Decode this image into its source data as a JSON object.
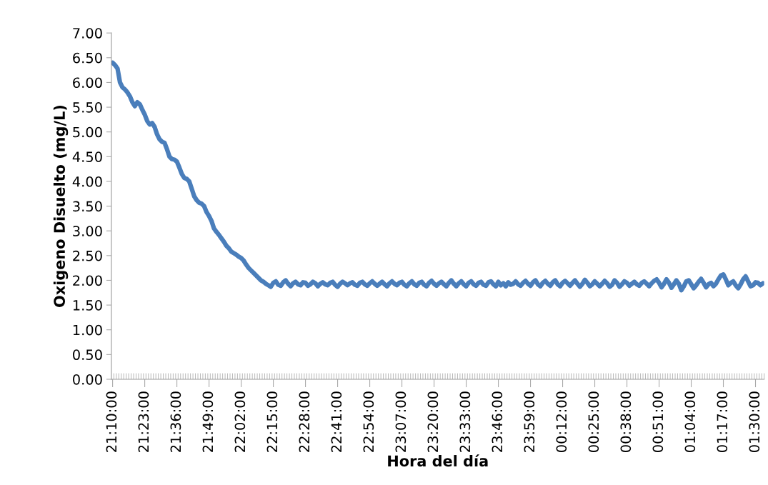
{
  "chart_data": {
    "type": "line",
    "xlabel": "Hora del día",
    "ylabel": "Oxigeno Disuelto (mg/L)",
    "ylim": [
      0,
      7
    ],
    "yticks": [
      {
        "value": 0,
        "label": "0.00"
      },
      {
        "value": 0.5,
        "label": "0.50"
      },
      {
        "value": 1,
        "label": "1.00"
      },
      {
        "value": 1.5,
        "label": "1.50"
      },
      {
        "value": 2,
        "label": "2.00"
      },
      {
        "value": 2.5,
        "label": "2.50"
      },
      {
        "value": 3,
        "label": "3.00"
      },
      {
        "value": 3.5,
        "label": "3.50"
      },
      {
        "value": 4,
        "label": "4.00"
      },
      {
        "value": 4.5,
        "label": "4.50"
      },
      {
        "value": 5,
        "label": "5.00"
      },
      {
        "value": 5.5,
        "label": "5.50"
      },
      {
        "value": 6,
        "label": "6.00"
      },
      {
        "value": 6.5,
        "label": "6.50"
      },
      {
        "value": 7,
        "label": "7.00"
      }
    ],
    "grid": false,
    "legend": false,
    "marker": "none",
    "line_style": "solid",
    "categories": [
      "21:10:00",
      null,
      null,
      null,
      null,
      null,
      null,
      null,
      null,
      null,
      null,
      null,
      null,
      "21:23:00",
      null,
      null,
      null,
      null,
      null,
      null,
      null,
      null,
      null,
      null,
      null,
      null,
      "21:36:00",
      null,
      null,
      null,
      null,
      null,
      null,
      null,
      null,
      null,
      null,
      null,
      null,
      "21:49:00",
      null,
      null,
      null,
      null,
      null,
      null,
      null,
      null,
      null,
      null,
      null,
      null,
      "22:02:00",
      null,
      null,
      null,
      null,
      null,
      null,
      null,
      null,
      null,
      null,
      null,
      null,
      "22:15:00",
      null,
      null,
      null,
      null,
      null,
      null,
      null,
      null,
      null,
      null,
      null,
      null,
      "22:28:00",
      null,
      null,
      null,
      null,
      null,
      null,
      null,
      null,
      null,
      null,
      null,
      null,
      "22:41:00",
      null,
      null,
      null,
      null,
      null,
      null,
      null,
      null,
      null,
      null,
      null,
      null,
      "22:54:00",
      null,
      null,
      null,
      null,
      null,
      null,
      null,
      null,
      null,
      null,
      null,
      null,
      "23:07:00",
      null,
      null,
      null,
      null,
      null,
      null,
      null,
      null,
      null,
      null,
      null,
      null,
      "23:20:00",
      null,
      null,
      null,
      null,
      null,
      null,
      null,
      null,
      null,
      null,
      null,
      null,
      "23:33:00",
      null,
      null,
      null,
      null,
      null,
      null,
      null,
      null,
      null,
      null,
      null,
      null,
      "23:46:00",
      null,
      null,
      null,
      null,
      null,
      null,
      null,
      null,
      null,
      null,
      null,
      null,
      "23:59:00",
      null,
      null,
      null,
      null,
      null,
      null,
      null,
      null,
      null,
      null,
      null,
      null,
      "00:12:00",
      null,
      null,
      null,
      null,
      null,
      null,
      null,
      null,
      null,
      null,
      null,
      null,
      "00:25:00",
      null,
      null,
      null,
      null,
      null,
      null,
      null,
      null,
      null,
      null,
      null,
      null,
      "00:38:00",
      null,
      null,
      null,
      null,
      null,
      null,
      null,
      null,
      null,
      null,
      null,
      null,
      "00:51:00",
      null,
      null,
      null,
      null,
      null,
      null,
      null,
      null,
      null,
      null,
      null,
      null,
      "01:04:00",
      null,
      null,
      null,
      null,
      null,
      null,
      null,
      null,
      null,
      null,
      null,
      null,
      "01:17:00",
      null,
      null,
      null,
      null,
      null,
      null,
      null,
      null,
      null,
      null,
      null,
      null,
      "01:30:00",
      null,
      null,
      null
    ],
    "series": [
      {
        "color": "#4a7ebb",
        "values": [
          6.4,
          6.35,
          6.28,
          6.0,
          5.9,
          5.86,
          5.8,
          5.72,
          5.6,
          5.52,
          5.6,
          5.56,
          5.45,
          5.35,
          5.22,
          5.15,
          5.18,
          5.1,
          4.95,
          4.85,
          4.8,
          4.78,
          4.65,
          4.5,
          4.45,
          4.44,
          4.4,
          4.28,
          4.15,
          4.07,
          4.05,
          4.0,
          3.85,
          3.7,
          3.62,
          3.57,
          3.55,
          3.5,
          3.38,
          3.3,
          3.2,
          3.05,
          2.98,
          2.92,
          2.85,
          2.78,
          2.7,
          2.65,
          2.58,
          2.55,
          2.52,
          2.48,
          2.45,
          2.4,
          2.32,
          2.25,
          2.2,
          2.15,
          2.1,
          2.05,
          2.0,
          1.97,
          1.93,
          1.9,
          1.87,
          1.95,
          1.98,
          1.91,
          1.89,
          1.96,
          2.0,
          1.93,
          1.88,
          1.94,
          1.97,
          1.92,
          1.9,
          1.96,
          1.95,
          1.89,
          1.92,
          1.97,
          1.94,
          1.88,
          1.93,
          1.96,
          1.92,
          1.9,
          1.95,
          1.97,
          1.91,
          1.87,
          1.93,
          1.97,
          1.94,
          1.9,
          1.94,
          1.96,
          1.91,
          1.89,
          1.95,
          1.97,
          1.92,
          1.89,
          1.94,
          1.98,
          1.93,
          1.89,
          1.93,
          1.97,
          1.92,
          1.88,
          1.94,
          1.98,
          1.93,
          1.9,
          1.95,
          1.97,
          1.91,
          1.88,
          1.94,
          1.98,
          1.92,
          1.89,
          1.95,
          1.97,
          1.91,
          1.88,
          1.95,
          1.99,
          1.93,
          1.89,
          1.94,
          1.97,
          1.92,
          1.88,
          1.95,
          2.0,
          1.93,
          1.88,
          1.94,
          1.98,
          1.92,
          1.88,
          1.95,
          1.98,
          1.92,
          1.89,
          1.95,
          1.97,
          1.91,
          1.89,
          1.96,
          1.98,
          1.92,
          1.88,
          1.97,
          1.9,
          1.94,
          1.88,
          1.96,
          1.91,
          1.93,
          1.98,
          1.92,
          1.89,
          1.95,
          1.99,
          1.93,
          1.89,
          1.96,
          2.0,
          1.92,
          1.88,
          1.95,
          1.99,
          1.93,
          1.89,
          1.96,
          2.0,
          1.92,
          1.88,
          1.95,
          1.99,
          1.94,
          1.89,
          1.95,
          2.0,
          1.93,
          1.87,
          1.93,
          2.01,
          1.95,
          1.88,
          1.92,
          1.98,
          1.93,
          1.88,
          1.93,
          1.99,
          1.94,
          1.87,
          1.91,
          2.0,
          1.95,
          1.87,
          1.92,
          1.98,
          1.95,
          1.89,
          1.93,
          1.97,
          1.92,
          1.89,
          1.95,
          1.98,
          1.93,
          1.88,
          1.94,
          1.99,
          2.02,
          1.95,
          1.86,
          1.93,
          2.02,
          1.95,
          1.85,
          1.92,
          2.0,
          1.93,
          1.8,
          1.88,
          1.98,
          2.0,
          1.92,
          1.84,
          1.9,
          1.97,
          2.03,
          1.95,
          1.86,
          1.92,
          1.95,
          1.88,
          1.93,
          2.02,
          2.1,
          2.12,
          2.02,
          1.9,
          1.95,
          1.98,
          1.9,
          1.84,
          1.92,
          2.02,
          2.08,
          1.98,
          1.88,
          1.9,
          1.96,
          1.95,
          1.9,
          1.94
        ]
      }
    ]
  }
}
